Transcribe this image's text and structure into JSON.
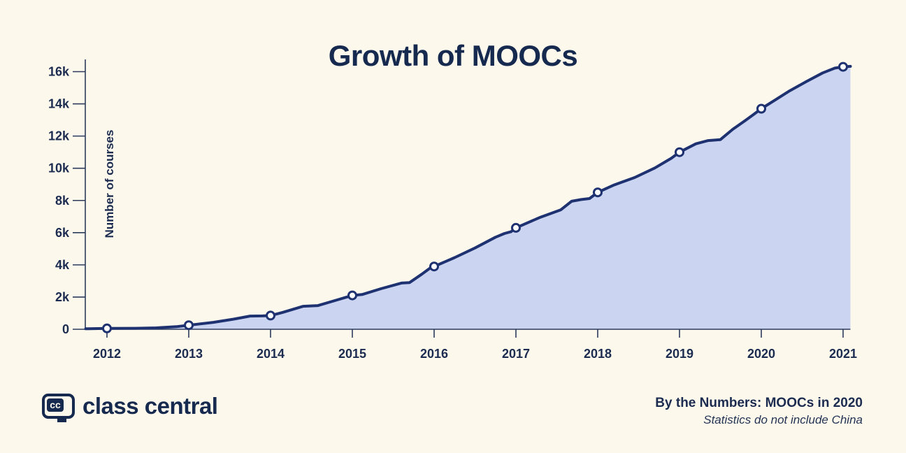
{
  "colors": {
    "background": "#fcf8ec",
    "navy_text": "#16294e",
    "line": "#1e3170",
    "area_fill": "#cbd4f1",
    "marker_fill": "#ffffff",
    "axis": "#2c3a5c"
  },
  "chart_data": {
    "type": "area",
    "title": "Growth of MOOCs",
    "xlabel": "",
    "ylabel": "Number of courses",
    "grid": false,
    "legend": "none",
    "ylim": [
      0,
      16800
    ],
    "xlim_years": [
      2011.74,
      2021.09
    ],
    "categories": [
      "2012",
      "2013",
      "2014",
      "2015",
      "2016",
      "2017",
      "2018",
      "2019",
      "2020",
      "2021"
    ],
    "values": [
      50,
      250,
      850,
      2100,
      3900,
      6300,
      8500,
      11000,
      13700,
      16300
    ],
    "y_ticks": [
      {
        "value": 0,
        "label": "0"
      },
      {
        "value": 2000,
        "label": "2k"
      },
      {
        "value": 4000,
        "label": "4k"
      },
      {
        "value": 6000,
        "label": "6k"
      },
      {
        "value": 8000,
        "label": "8k"
      },
      {
        "value": 10000,
        "label": "10k"
      },
      {
        "value": 12000,
        "label": "12k"
      },
      {
        "value": 14000,
        "label": "14k"
      },
      {
        "value": 16000,
        "label": "16k"
      }
    ],
    "line_detail": [
      [
        2011.74,
        30
      ],
      [
        2012,
        50
      ],
      [
        2012.35,
        60
      ],
      [
        2012.6,
        85
      ],
      [
        2012.85,
        160
      ],
      [
        2013,
        250
      ],
      [
        2013.3,
        430
      ],
      [
        2013.55,
        630
      ],
      [
        2013.75,
        820
      ],
      [
        2013.9,
        830
      ],
      [
        2014,
        850
      ],
      [
        2014.15,
        1050
      ],
      [
        2014.4,
        1430
      ],
      [
        2014.58,
        1470
      ],
      [
        2014.8,
        1800
      ],
      [
        2015,
        2100
      ],
      [
        2015.12,
        2160
      ],
      [
        2015.35,
        2520
      ],
      [
        2015.6,
        2870
      ],
      [
        2015.7,
        2900
      ],
      [
        2015.85,
        3420
      ],
      [
        2015.95,
        3800
      ],
      [
        2016,
        3900
      ],
      [
        2016.25,
        4450
      ],
      [
        2016.5,
        5050
      ],
      [
        2016.75,
        5720
      ],
      [
        2016.86,
        5950
      ],
      [
        2016.94,
        6060
      ],
      [
        2017,
        6300
      ],
      [
        2017.3,
        6960
      ],
      [
        2017.55,
        7420
      ],
      [
        2017.68,
        7950
      ],
      [
        2017.8,
        8060
      ],
      [
        2017.9,
        8120
      ],
      [
        2018,
        8500
      ],
      [
        2018.2,
        8960
      ],
      [
        2018.45,
        9420
      ],
      [
        2018.7,
        10020
      ],
      [
        2018.9,
        10620
      ],
      [
        2019,
        11000
      ],
      [
        2019.2,
        11520
      ],
      [
        2019.35,
        11720
      ],
      [
        2019.5,
        11780
      ],
      [
        2019.65,
        12420
      ],
      [
        2019.8,
        12950
      ],
      [
        2019.9,
        13320
      ],
      [
        2020,
        13700
      ],
      [
        2020.15,
        14180
      ],
      [
        2020.35,
        14820
      ],
      [
        2020.55,
        15380
      ],
      [
        2020.75,
        15920
      ],
      [
        2020.9,
        16220
      ],
      [
        2021,
        16300
      ],
      [
        2021.09,
        16330
      ]
    ]
  },
  "footer": {
    "logo_badge": "cc",
    "brand": "class central",
    "caption_title": "By the Numbers: MOOCs in 2020",
    "caption_subtitle": "Statistics do not include China"
  }
}
